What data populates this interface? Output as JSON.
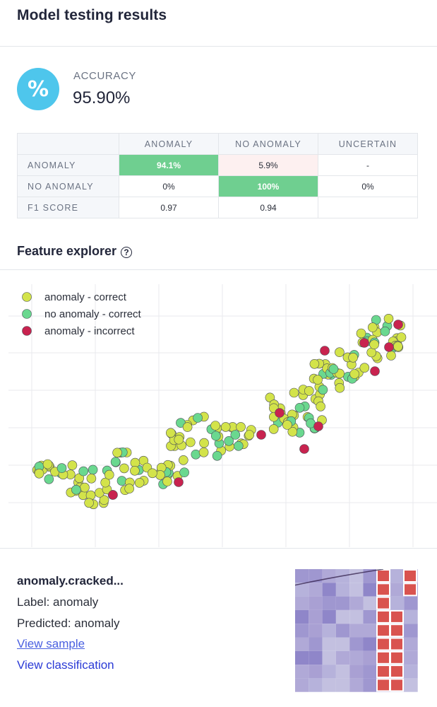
{
  "header": {
    "title": "Model testing results"
  },
  "accuracy": {
    "label": "ACCURACY",
    "value": "95.90%",
    "icon": "percent-icon",
    "icon_glyph": "%",
    "icon_color": "#4ec6ec"
  },
  "confusion_matrix": {
    "columns": [
      "ANOMALY",
      "NO ANOMALY",
      "UNCERTAIN"
    ],
    "rows": [
      {
        "label": "ANOMALY",
        "cells": [
          "94.1%",
          "5.9%",
          "-"
        ]
      },
      {
        "label": "NO ANOMALY",
        "cells": [
          "0%",
          "100%",
          "0%"
        ]
      },
      {
        "label": "F1 SCORE",
        "cells": [
          "0.97",
          "0.94",
          ""
        ]
      }
    ],
    "colors": {
      "highlight": "#6fcf90",
      "low": "#fdf0f0"
    }
  },
  "feature_explorer": {
    "title": "Feature explorer",
    "help_icon": "question-circle-icon",
    "help_glyph": "?"
  },
  "chart_data": {
    "type": "scatter",
    "grid": true,
    "legend_position": "top-left",
    "series": [
      {
        "name": "anomaly - correct",
        "color": "#d3e34a"
      },
      {
        "name": "no anomaly - correct",
        "color": "#6ad88f"
      },
      {
        "name": "anomaly - incorrect",
        "color": "#c8234f"
      }
    ]
  },
  "sample": {
    "name": "anomaly.cracked...",
    "label_text": "Label: anomaly",
    "predicted_text": "Predicted: anomaly",
    "view_sample": "View sample",
    "view_classification": "View classification",
    "thumbnail_icon": "sample-image-thumbnail"
  }
}
